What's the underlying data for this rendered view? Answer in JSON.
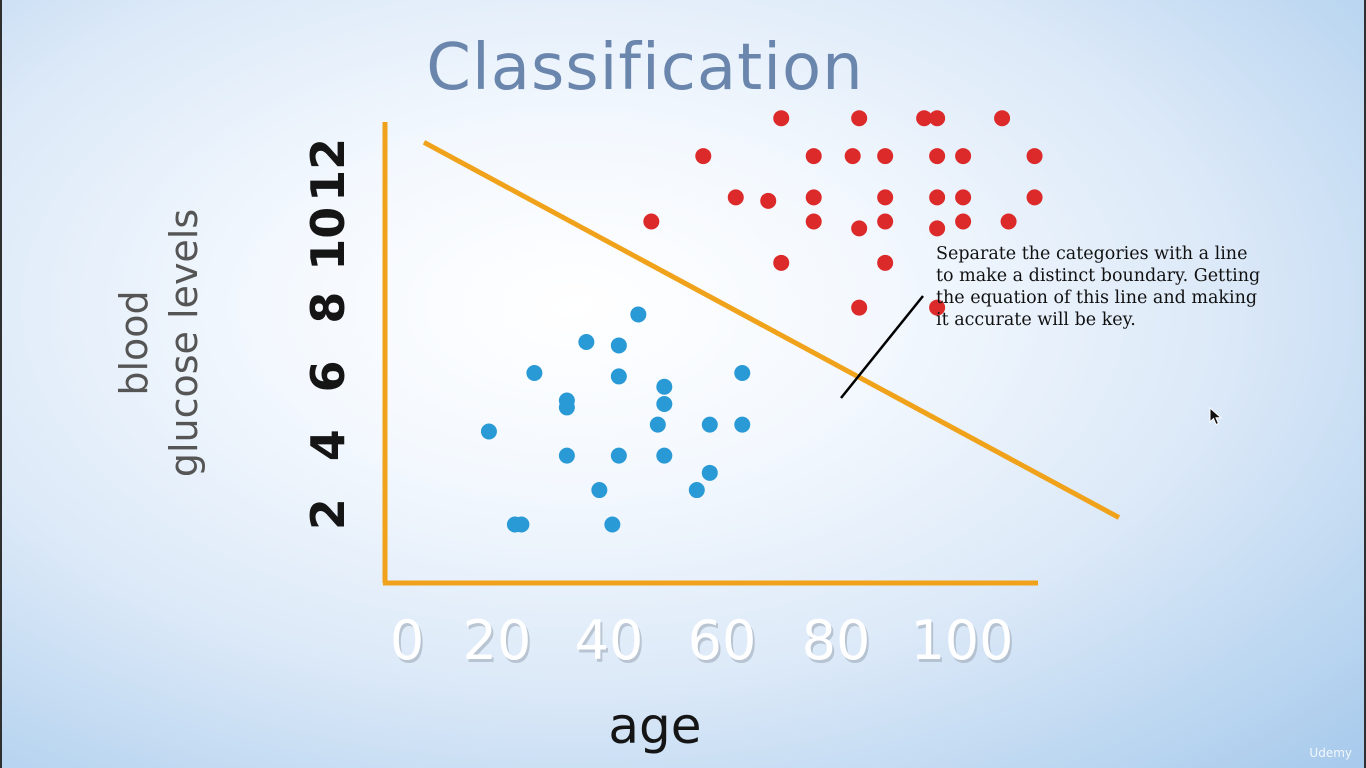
{
  "chart_data": {
    "type": "scatter",
    "title": "Classification",
    "xlabel": "age",
    "ylabel": [
      "blood",
      "glucose levels"
    ],
    "xticks": [
      0,
      20,
      40,
      60,
      80,
      100
    ],
    "yticks": [
      2,
      4,
      6,
      8,
      10,
      12
    ],
    "xlim": [
      0,
      115
    ],
    "ylim": [
      0,
      14
    ],
    "grid": false,
    "series": [
      {
        "color": "#dc2a2a",
        "points": [
          [
            61,
            13.5
          ],
          [
            73,
            13.5
          ],
          [
            83,
            13.5
          ],
          [
            85,
            13.5
          ],
          [
            95,
            13.5
          ],
          [
            49,
            12.4
          ],
          [
            66,
            12.4
          ],
          [
            72,
            12.4
          ],
          [
            77,
            12.4
          ],
          [
            85,
            12.4
          ],
          [
            89,
            12.4
          ],
          [
            100,
            12.4
          ],
          [
            54,
            11.2
          ],
          [
            59,
            11.1
          ],
          [
            66,
            11.2
          ],
          [
            77,
            11.2
          ],
          [
            85,
            11.2
          ],
          [
            89,
            11.2
          ],
          [
            100,
            11.2
          ],
          [
            41,
            10.5
          ],
          [
            66,
            10.5
          ],
          [
            73,
            10.3
          ],
          [
            77,
            10.5
          ],
          [
            85,
            10.3
          ],
          [
            89,
            10.5
          ],
          [
            96,
            10.5
          ],
          [
            61,
            9.3
          ],
          [
            77,
            9.3
          ],
          [
            73,
            8.0
          ],
          [
            85,
            8.0
          ]
        ]
      },
      {
        "color": "#2a9ad6",
        "points": [
          [
            39,
            7.8
          ],
          [
            31,
            7.0
          ],
          [
            36,
            6.9
          ],
          [
            23,
            6.1
          ],
          [
            36,
            6.0
          ],
          [
            55,
            6.1
          ],
          [
            43,
            5.7
          ],
          [
            28,
            5.3
          ],
          [
            28,
            5.1
          ],
          [
            43,
            5.2
          ],
          [
            42,
            4.6
          ],
          [
            50,
            4.6
          ],
          [
            55,
            4.6
          ],
          [
            16,
            4.4
          ],
          [
            28,
            3.7
          ],
          [
            36,
            3.7
          ],
          [
            43,
            3.7
          ],
          [
            50,
            3.2
          ],
          [
            33,
            2.7
          ],
          [
            48,
            2.7
          ],
          [
            20,
            1.7
          ],
          [
            21,
            1.7
          ],
          [
            35,
            1.7
          ]
        ]
      }
    ],
    "boundary_line": {
      "from": [
        6,
        12.8
      ],
      "to": [
        113,
        1.9
      ],
      "color": "#f0a21a"
    },
    "axis_color": "#f0a21a",
    "annotation": {
      "text": "Separate the categories with a line to make a distinct boundary. Getting the equation of this line and making it accurate will be key."
    }
  },
  "watermark": "Udemy"
}
